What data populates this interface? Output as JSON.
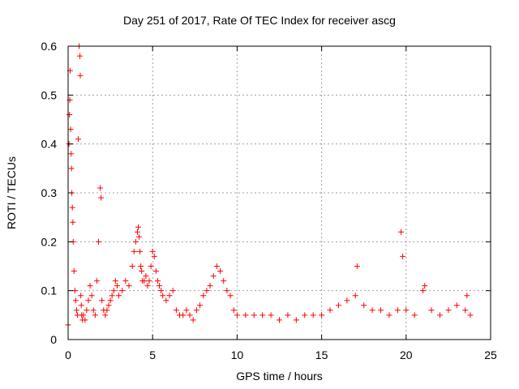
{
  "chart_data": {
    "type": "scatter",
    "title": "Day 251 of 2017, Rate Of TEC Index for receiver ascg",
    "xlabel": "GPS time / hours",
    "ylabel": "ROTI / TECUs",
    "xlim": [
      0,
      25
    ],
    "ylim": [
      0,
      0.6
    ],
    "x_ticks": [
      "0",
      "5",
      "10",
      "15",
      "20",
      "25"
    ],
    "y_ticks": [
      "0",
      "0.1",
      "0.2",
      "0.3",
      "0.4",
      "0.5",
      "0.6"
    ],
    "grid": true,
    "marker": "+",
    "color": "#ff0000",
    "series": [
      {
        "x": [
          0.0,
          0.05,
          0.08,
          0.1,
          0.12,
          0.15,
          0.18,
          0.2,
          0.22,
          0.25,
          0.28,
          0.3,
          0.35,
          0.4,
          0.45,
          0.5,
          0.55,
          0.6,
          0.65,
          0.7,
          0.72,
          0.75,
          0.78,
          0.8,
          0.85,
          0.9,
          1.0,
          1.1,
          1.2,
          1.3,
          1.4,
          1.5,
          1.6,
          1.7,
          1.8,
          1.9,
          1.95,
          2.0,
          2.1,
          2.2,
          2.3,
          2.4,
          2.5,
          2.6,
          2.7,
          2.8,
          2.9,
          3.0,
          3.2,
          3.4,
          3.6,
          3.8,
          3.9,
          4.0,
          4.1,
          4.15,
          4.2,
          4.25,
          4.3,
          4.35,
          4.4,
          4.5,
          4.6,
          4.7,
          4.8,
          4.9,
          5.0,
          5.1,
          5.2,
          5.3,
          5.4,
          5.5,
          5.6,
          5.8,
          6.0,
          6.2,
          6.4,
          6.6,
          6.8,
          7.0,
          7.2,
          7.4,
          7.6,
          7.8,
          8.0,
          8.2,
          8.4,
          8.6,
          8.8,
          9.0,
          9.2,
          9.4,
          9.6,
          9.8,
          10.0,
          10.5,
          11.0,
          11.5,
          12.0,
          12.5,
          13.0,
          13.5,
          14.0,
          14.5,
          15.0,
          15.5,
          16.0,
          16.5,
          17.0,
          17.1,
          17.5,
          18.0,
          18.5,
          19.0,
          19.5,
          19.7,
          19.8,
          20.0,
          20.5,
          21.0,
          21.1,
          21.5,
          22.0,
          22.5,
          23.0,
          23.5,
          23.6,
          23.8
        ],
        "y": [
          0.03,
          0.4,
          0.46,
          0.49,
          0.55,
          0.43,
          0.38,
          0.35,
          0.3,
          0.27,
          0.24,
          0.2,
          0.14,
          0.1,
          0.08,
          0.06,
          0.05,
          0.41,
          0.6,
          0.58,
          0.54,
          0.09,
          0.07,
          0.05,
          0.04,
          0.05,
          0.04,
          0.06,
          0.08,
          0.11,
          0.09,
          0.06,
          0.05,
          0.12,
          0.2,
          0.31,
          0.29,
          0.08,
          0.06,
          0.05,
          0.06,
          0.07,
          0.08,
          0.09,
          0.1,
          0.12,
          0.11,
          0.09,
          0.1,
          0.12,
          0.11,
          0.15,
          0.18,
          0.2,
          0.22,
          0.23,
          0.21,
          0.18,
          0.15,
          0.14,
          0.12,
          0.12,
          0.13,
          0.11,
          0.12,
          0.15,
          0.18,
          0.17,
          0.14,
          0.12,
          0.11,
          0.1,
          0.09,
          0.08,
          0.09,
          0.1,
          0.06,
          0.05,
          0.05,
          0.06,
          0.05,
          0.04,
          0.06,
          0.07,
          0.09,
          0.1,
          0.11,
          0.13,
          0.15,
          0.14,
          0.12,
          0.1,
          0.09,
          0.06,
          0.05,
          0.05,
          0.05,
          0.05,
          0.05,
          0.04,
          0.05,
          0.04,
          0.05,
          0.05,
          0.05,
          0.06,
          0.07,
          0.08,
          0.09,
          0.15,
          0.07,
          0.06,
          0.06,
          0.05,
          0.06,
          0.22,
          0.17,
          0.06,
          0.05,
          0.1,
          0.11,
          0.06,
          0.05,
          0.06,
          0.07,
          0.06,
          0.09,
          0.05
        ]
      }
    ]
  }
}
